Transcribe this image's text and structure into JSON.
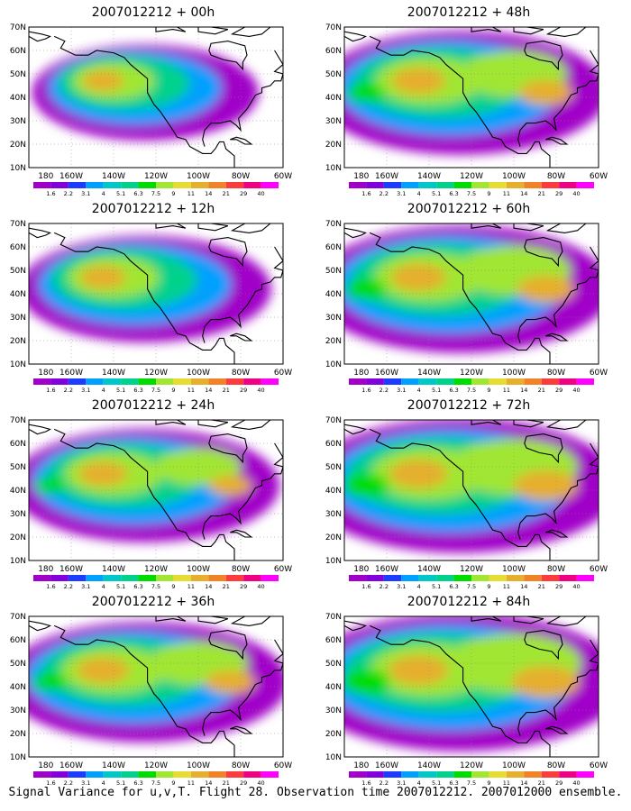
{
  "panels": [
    {
      "title": "2007012212 + 00h",
      "col": 0,
      "row": 0,
      "intensity": 0.35
    },
    {
      "title": "2007012212 + 48h",
      "col": 1,
      "row": 0,
      "intensity": 0.75
    },
    {
      "title": "2007012212 + 12h",
      "col": 0,
      "row": 1,
      "intensity": 0.5
    },
    {
      "title": "2007012212 + 60h",
      "col": 1,
      "row": 1,
      "intensity": 0.8
    },
    {
      "title": "2007012212 + 24h",
      "col": 0,
      "row": 2,
      "intensity": 0.6
    },
    {
      "title": "2007012212 + 72h",
      "col": 1,
      "row": 2,
      "intensity": 0.9
    },
    {
      "title": "2007012212 + 36h",
      "col": 0,
      "row": 3,
      "intensity": 0.7
    },
    {
      "title": "2007012212 + 84h",
      "col": 1,
      "row": 3,
      "intensity": 0.95
    }
  ],
  "lat_labels": [
    "70N",
    "60N",
    "50N",
    "40N",
    "30N",
    "20N",
    "10N"
  ],
  "lon_labels": [
    "180",
    "160W",
    "140W",
    "120W",
    "100W",
    "80W",
    "60W"
  ],
  "colorbar": {
    "labels": [
      "1.6",
      "2.2",
      "3.1",
      "4",
      "5.1",
      "6.3",
      "7.5",
      "9",
      "11",
      "14",
      "21",
      "29",
      "40"
    ],
    "colors": [
      "#a000c8",
      "#8200dc",
      "#1e3cff",
      "#00a0ff",
      "#00c8c8",
      "#00d28c",
      "#00dc00",
      "#a0e632",
      "#e6dc32",
      "#e6af2d",
      "#f08228",
      "#fa3c3c",
      "#f00082",
      "#ff00ff"
    ]
  },
  "caption": "Signal Variance for u,v,T. Flight 28. Observation time 2007012212. 2007012000 ensemble."
}
